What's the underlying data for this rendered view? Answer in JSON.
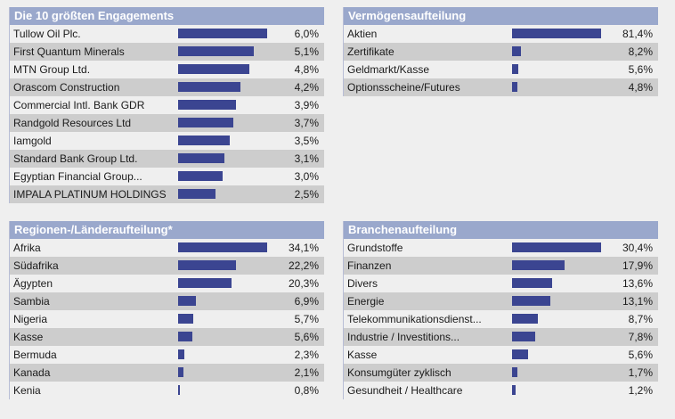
{
  "colors": {
    "header_bg": "#9aa8cc",
    "bar": "#3b4591",
    "row_alt": "#cdcdcd",
    "row": "#efefef"
  },
  "panels": [
    {
      "id": "p1",
      "title": "Die 10 größten Engagements",
      "max": 6.0,
      "rows": [
        {
          "label": "Tullow Oil Plc.",
          "value": 6.0,
          "text": "6,0%"
        },
        {
          "label": "First Quantum Minerals",
          "value": 5.1,
          "text": "5,1%"
        },
        {
          "label": "MTN Group Ltd.",
          "value": 4.8,
          "text": "4,8%"
        },
        {
          "label": "Orascom Construction",
          "value": 4.2,
          "text": "4,2%"
        },
        {
          "label": "Commercial Intl. Bank GDR",
          "value": 3.9,
          "text": "3,9%"
        },
        {
          "label": "Randgold Resources Ltd",
          "value": 3.7,
          "text": "3,7%"
        },
        {
          "label": "Iamgold",
          "value": 3.5,
          "text": "3,5%"
        },
        {
          "label": "Standard Bank Group Ltd.",
          "value": 3.1,
          "text": "3,1%"
        },
        {
          "label": "Egyptian Financial Group...",
          "value": 3.0,
          "text": "3,0%"
        },
        {
          "label": "IMPALA PLATINUM HOLDINGS",
          "value": 2.5,
          "text": "2,5%"
        }
      ]
    },
    {
      "id": "p2",
      "title": "Vermögensaufteilung",
      "max": 81.4,
      "rows": [
        {
          "label": "Aktien",
          "value": 81.4,
          "text": "81,4%"
        },
        {
          "label": "Zertifikate",
          "value": 8.2,
          "text": "8,2%"
        },
        {
          "label": "Geldmarkt/Kasse",
          "value": 5.6,
          "text": "5,6%"
        },
        {
          "label": "Optionsscheine/Futures",
          "value": 4.8,
          "text": "4,8%"
        }
      ]
    },
    {
      "id": "p3",
      "title": "Regionen-/Länderaufteilung*",
      "max": 34.1,
      "rows": [
        {
          "label": "Afrika",
          "value": 34.1,
          "text": "34,1%"
        },
        {
          "label": "Südafrika",
          "value": 22.2,
          "text": "22,2%"
        },
        {
          "label": "Ägypten",
          "value": 20.3,
          "text": "20,3%"
        },
        {
          "label": "Sambia",
          "value": 6.9,
          "text": "6,9%"
        },
        {
          "label": "Nigeria",
          "value": 5.7,
          "text": "5,7%"
        },
        {
          "label": "Kasse",
          "value": 5.6,
          "text": "5,6%"
        },
        {
          "label": "Bermuda",
          "value": 2.3,
          "text": "2,3%"
        },
        {
          "label": "Kanada",
          "value": 2.1,
          "text": "2,1%"
        },
        {
          "label": "Kenia",
          "value": 0.8,
          "text": "0,8%"
        }
      ]
    },
    {
      "id": "p4",
      "title": "Branchenaufteilung",
      "max": 30.4,
      "rows": [
        {
          "label": "Grundstoffe",
          "value": 30.4,
          "text": "30,4%"
        },
        {
          "label": "Finanzen",
          "value": 17.9,
          "text": "17,9%"
        },
        {
          "label": "Divers",
          "value": 13.6,
          "text": "13,6%"
        },
        {
          "label": "Energie",
          "value": 13.1,
          "text": "13,1%"
        },
        {
          "label": "Telekommunikationsdienst...",
          "value": 8.7,
          "text": "8,7%"
        },
        {
          "label": "Industrie / Investitions...",
          "value": 7.8,
          "text": "7,8%"
        },
        {
          "label": "Kasse",
          "value": 5.6,
          "text": "5,6%"
        },
        {
          "label": "Konsumgüter zyklisch",
          "value": 1.7,
          "text": "1,7%"
        },
        {
          "label": "Gesundheit / Healthcare",
          "value": 1.2,
          "text": "1,2%"
        }
      ]
    }
  ]
}
